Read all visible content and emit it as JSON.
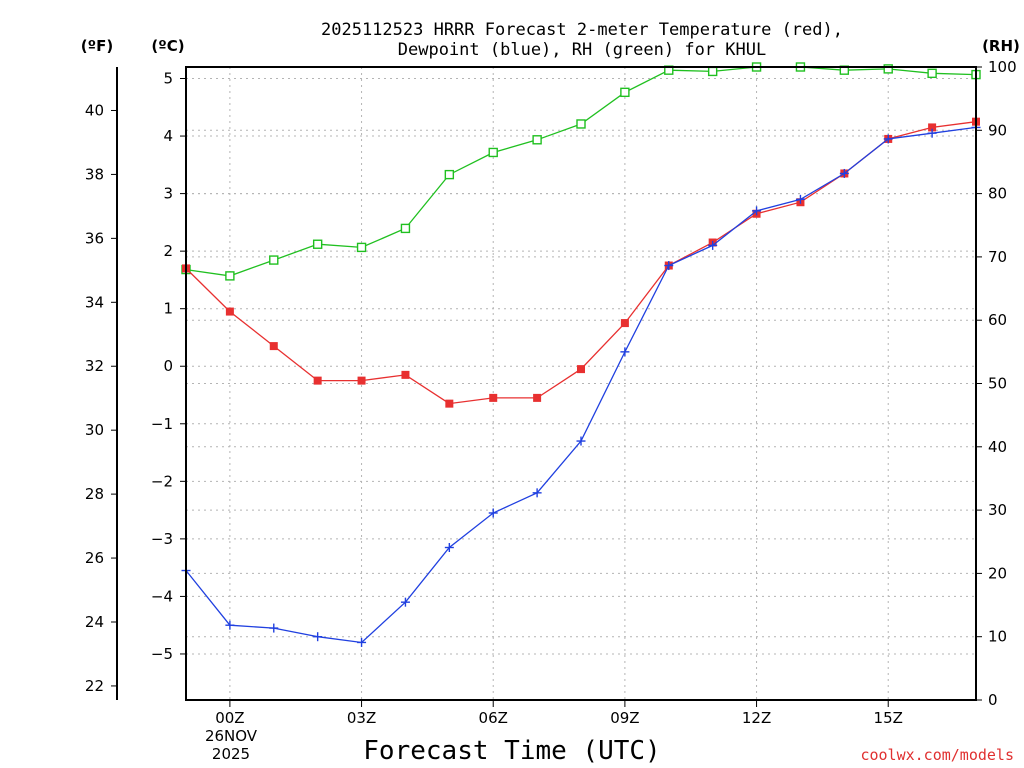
{
  "chart_data": {
    "type": "line",
    "title_line1": "2025112523 HRRR Forecast 2-meter Temperature (red),",
    "title_line2": "Dewpoint (blue), RH (green) for KHUL",
    "xlabel": "Forecast Time (UTC)",
    "unit_fahrenheit": "(ºF)",
    "unit_celsius": "(ºC)",
    "unit_rh": "(RH)",
    "watermark": "coolwx.com/models",
    "date_day": "26NOV",
    "date_year": "2025",
    "x": [
      -1,
      0,
      1,
      2,
      3,
      4,
      5,
      6,
      7,
      8,
      9,
      10,
      11,
      12,
      13,
      14,
      15,
      16,
      17
    ],
    "xlim": [
      -1,
      17
    ],
    "x_ticks": [
      0,
      3,
      6,
      9,
      12,
      15
    ],
    "x_tick_labels": [
      "00Z",
      "03Z",
      "06Z",
      "09Z",
      "12Z",
      "15Z"
    ],
    "celsius_ylim": [
      -5.8,
      5.2
    ],
    "celsius_ticks": [
      -5,
      -4,
      -3,
      -2,
      -1,
      0,
      1,
      2,
      3,
      4,
      5
    ],
    "celsius_tick_labels": [
      "−5",
      "−4",
      "−3",
      "−2",
      "−1",
      "0",
      "1",
      "2",
      "3",
      "4",
      "5"
    ],
    "fahrenheit_ticks": [
      22,
      24,
      26,
      28,
      30,
      32,
      34,
      36,
      38,
      40
    ],
    "fahrenheit_tick_labels": [
      "22",
      "24",
      "26",
      "28",
      "30",
      "32",
      "34",
      "36",
      "38",
      "40"
    ],
    "rh_ylim": [
      0,
      100
    ],
    "rh_ticks": [
      0,
      10,
      20,
      30,
      40,
      50,
      60,
      70,
      80,
      90,
      100
    ],
    "rh_tick_labels": [
      "0",
      "10",
      "20",
      "30",
      "40",
      "50",
      "60",
      "70",
      "80",
      "90",
      "100"
    ],
    "series": [
      {
        "name": "Temperature",
        "axis": "celsius",
        "color": "#e83030",
        "marker": "filled-square",
        "values": [
          1.7,
          0.95,
          0.35,
          -0.25,
          -0.25,
          -0.15,
          -0.65,
          -0.55,
          -0.55,
          -0.05,
          0.75,
          1.75,
          2.15,
          2.65,
          2.85,
          3.35,
          3.95,
          4.15,
          4.25
        ]
      },
      {
        "name": "Dewpoint",
        "axis": "celsius",
        "color": "#2040e0",
        "marker": "plus",
        "values": [
          -3.55,
          -4.5,
          -4.55,
          -4.7,
          -4.8,
          -4.1,
          -3.15,
          -2.55,
          -2.2,
          -1.3,
          0.25,
          1.75,
          2.1,
          2.7,
          2.9,
          3.35,
          3.95,
          4.05,
          4.15
        ]
      },
      {
        "name": "RH",
        "axis": "rh",
        "color": "#20c020",
        "marker": "open-square",
        "values": [
          68,
          67,
          69.5,
          72,
          71.5,
          74.5,
          83,
          86.5,
          88.5,
          91,
          96,
          99.5,
          99.3,
          100,
          100,
          99.5,
          99.7,
          99,
          98.8
        ]
      }
    ]
  }
}
